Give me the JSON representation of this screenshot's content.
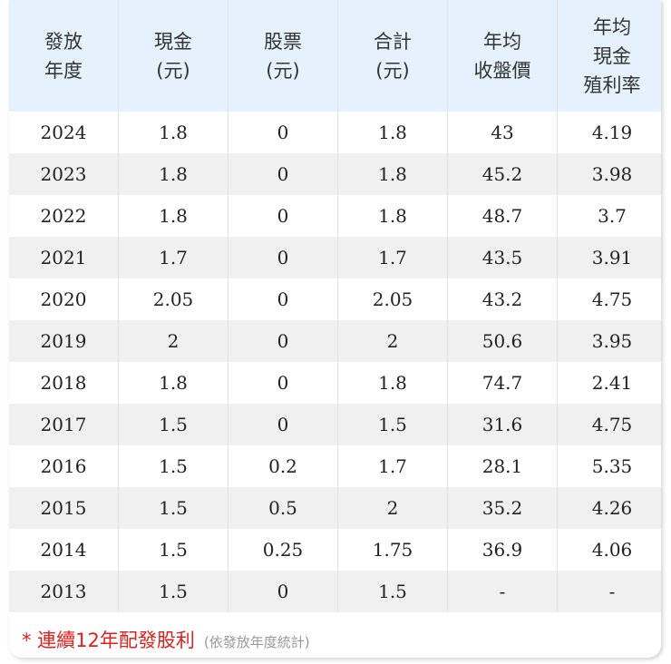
{
  "table": {
    "headers": [
      [
        "發放",
        "年度"
      ],
      [
        "現金",
        "(元)"
      ],
      [
        "股票",
        "(元)"
      ],
      [
        "合計",
        "(元)"
      ],
      [
        "年均",
        "收盤價"
      ],
      [
        "年均",
        "現金",
        "殖利率"
      ]
    ],
    "rows": [
      [
        "2024",
        "1.8",
        "0",
        "1.8",
        "43",
        "4.19"
      ],
      [
        "2023",
        "1.8",
        "0",
        "1.8",
        "45.2",
        "3.98"
      ],
      [
        "2022",
        "1.8",
        "0",
        "1.8",
        "48.7",
        "3.7"
      ],
      [
        "2021",
        "1.7",
        "0",
        "1.7",
        "43.5",
        "3.91"
      ],
      [
        "2020",
        "2.05",
        "0",
        "2.05",
        "43.2",
        "4.75"
      ],
      [
        "2019",
        "2",
        "0",
        "2",
        "50.6",
        "3.95"
      ],
      [
        "2018",
        "1.8",
        "0",
        "1.8",
        "74.7",
        "2.41"
      ],
      [
        "2017",
        "1.5",
        "0",
        "1.5",
        "31.6",
        "4.75"
      ],
      [
        "2016",
        "1.5",
        "0.2",
        "1.7",
        "28.1",
        "5.35"
      ],
      [
        "2015",
        "1.5",
        "0.5",
        "2",
        "35.2",
        "4.26"
      ],
      [
        "2014",
        "1.5",
        "0.25",
        "1.75",
        "36.9",
        "4.06"
      ],
      [
        "2013",
        "1.5",
        "0",
        "1.5",
        "-",
        "-"
      ]
    ]
  },
  "footer": {
    "note": "* 連續12年配發股利",
    "subnote": "(依發放年度統計)"
  },
  "colors": {
    "header_bg": "#e5f1fc",
    "alt_row_bg": "#f0f0f0",
    "note_red": "#e0201c"
  }
}
